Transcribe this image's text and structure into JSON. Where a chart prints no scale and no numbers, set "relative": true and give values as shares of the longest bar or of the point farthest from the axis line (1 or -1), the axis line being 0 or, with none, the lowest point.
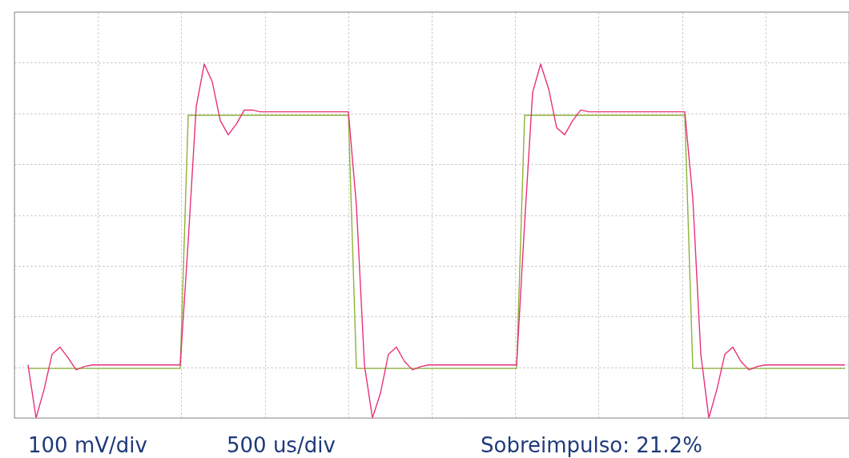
{
  "chart_data": {
    "type": "line",
    "relative": true,
    "grid": true,
    "marker": "none",
    "line_style": "solid",
    "categories": [
      null,
      null,
      null,
      null,
      null,
      null,
      null,
      null,
      null,
      null,
      null,
      null,
      null,
      null,
      null,
      null,
      null,
      null,
      null,
      null,
      null,
      null,
      null,
      null,
      null,
      null,
      null,
      null,
      null,
      null,
      null,
      null,
      null,
      null,
      null,
      null,
      null,
      null,
      null,
      null,
      null,
      null,
      null,
      null,
      null,
      null,
      null,
      null,
      null,
      null,
      null,
      null,
      null,
      null,
      null,
      null,
      null,
      null,
      null,
      null,
      null,
      null,
      null,
      null,
      null,
      null,
      null,
      null,
      null,
      null,
      null,
      null,
      null,
      null,
      null,
      null,
      null,
      null,
      null,
      null,
      null,
      null,
      null,
      null,
      null,
      null,
      null,
      null,
      null,
      null,
      null,
      null,
      null,
      null,
      null,
      null,
      null,
      null,
      null,
      null,
      null,
      null,
      null
    ],
    "series": [
      {
        "color": "#8db33a",
        "values": [
          0.14,
          0.14,
          0.14,
          0.14,
          0.14,
          0.14,
          0.14,
          0.14,
          0.14,
          0.14,
          0.14,
          0.14,
          0.14,
          0.14,
          0.14,
          0.14,
          0.14,
          0.14,
          0.14,
          0.14,
          0.855,
          0.855,
          0.855,
          0.855,
          0.855,
          0.855,
          0.855,
          0.855,
          0.855,
          0.855,
          0.855,
          0.855,
          0.855,
          0.855,
          0.855,
          0.855,
          0.855,
          0.855,
          0.855,
          0.855,
          0.855,
          0.14,
          0.14,
          0.14,
          0.14,
          0.14,
          0.14,
          0.14,
          0.14,
          0.14,
          0.14,
          0.14,
          0.14,
          0.14,
          0.14,
          0.14,
          0.14,
          0.14,
          0.14,
          0.14,
          0.14,
          0.14,
          0.855,
          0.855,
          0.855,
          0.855,
          0.855,
          0.855,
          0.855,
          0.855,
          0.855,
          0.855,
          0.855,
          0.855,
          0.855,
          0.855,
          0.855,
          0.855,
          0.855,
          0.855,
          0.855,
          0.855,
          0.855,
          0.14,
          0.14,
          0.14,
          0.14,
          0.14,
          0.14,
          0.14,
          0.14,
          0.14,
          0.14,
          0.14,
          0.14,
          0.14,
          0.14,
          0.14,
          0.14,
          0.14,
          0.14,
          0.14,
          0.14
        ]
      },
      {
        "color": "#e8317a",
        "values": [
          0.15,
          0.0,
          0.08,
          0.18,
          0.2,
          0.17,
          0.136,
          0.145,
          0.15,
          0.15,
          0.15,
          0.15,
          0.15,
          0.15,
          0.15,
          0.15,
          0.15,
          0.15,
          0.15,
          0.15,
          0.5,
          0.88,
          1.0,
          0.95,
          0.84,
          0.8,
          0.83,
          0.87,
          0.87,
          0.865,
          0.865,
          0.865,
          0.865,
          0.865,
          0.865,
          0.865,
          0.865,
          0.865,
          0.865,
          0.865,
          0.865,
          0.6,
          0.15,
          0.0,
          0.07,
          0.18,
          0.2,
          0.16,
          0.136,
          0.145,
          0.15,
          0.15,
          0.15,
          0.15,
          0.15,
          0.15,
          0.15,
          0.15,
          0.15,
          0.15,
          0.15,
          0.15,
          0.55,
          0.92,
          1.0,
          0.93,
          0.82,
          0.8,
          0.84,
          0.87,
          0.865,
          0.865,
          0.865,
          0.865,
          0.865,
          0.865,
          0.865,
          0.865,
          0.865,
          0.865,
          0.865,
          0.865,
          0.865,
          0.62,
          0.18,
          0.0,
          0.08,
          0.18,
          0.2,
          0.16,
          0.136,
          0.145,
          0.15,
          0.15,
          0.15,
          0.15,
          0.15,
          0.15,
          0.15,
          0.15,
          0.15,
          0.15,
          0.15
        ]
      }
    ],
    "annotations": [
      "100 mV/div",
      "500 us/div",
      "Sobreimpulso: 21.2%"
    ]
  }
}
